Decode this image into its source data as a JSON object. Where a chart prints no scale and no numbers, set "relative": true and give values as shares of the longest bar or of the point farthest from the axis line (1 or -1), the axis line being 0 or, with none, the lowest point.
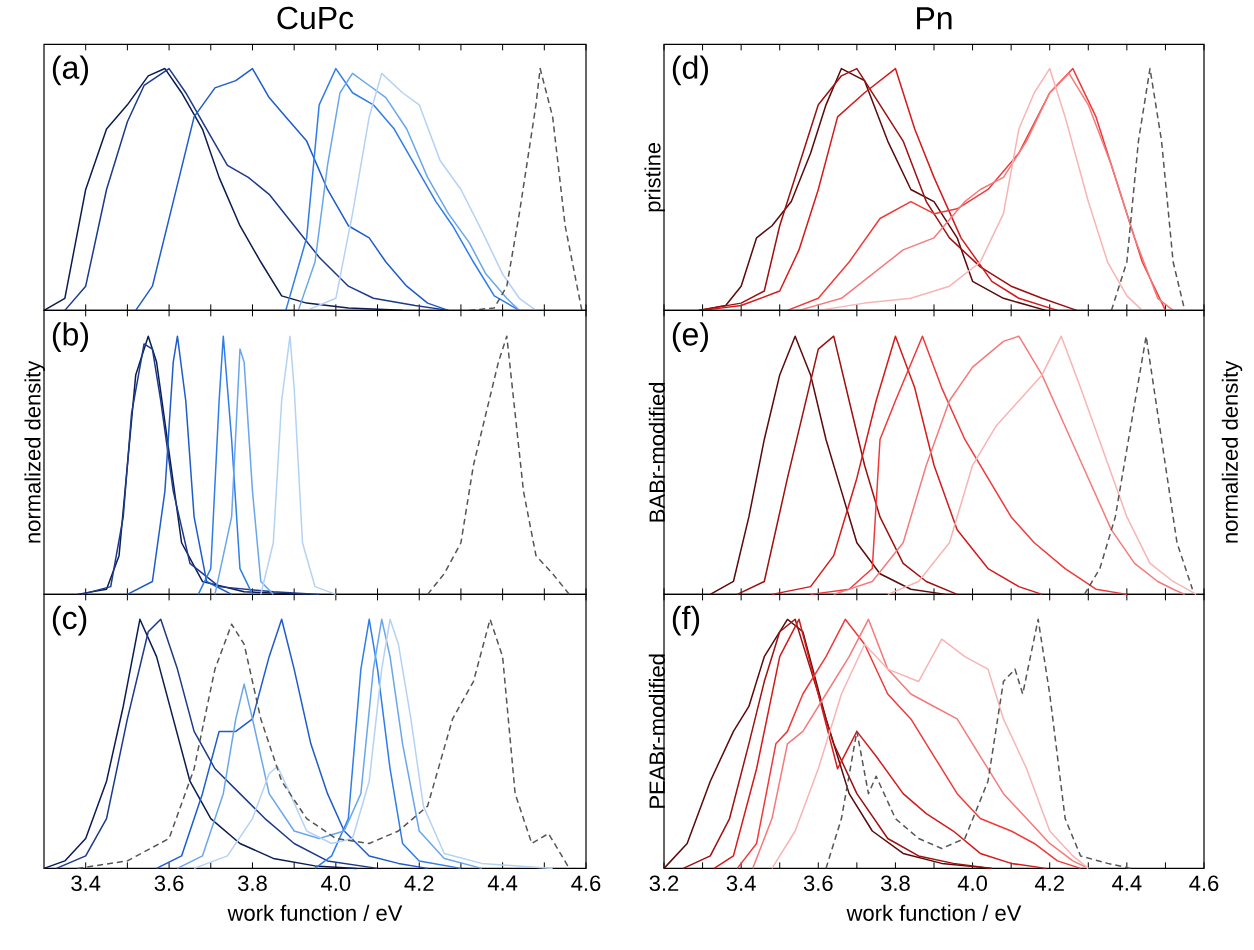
{
  "chart_data": [
    {
      "type": "line",
      "relative": true,
      "title": "CuPc",
      "annotations": [
        "(a)"
      ],
      "xlim": [
        3.3,
        4.6
      ],
      "tick_labels": false,
      "line_style": "solid",
      "xticks": [
        3.4,
        {
          "value": 3.5,
          "label": null
        },
        3.6,
        {
          "value": 3.7,
          "label": null
        },
        3.8,
        {
          "value": 3.9,
          "label": null
        },
        4.0,
        {
          "value": 4.1,
          "label": null
        },
        4.2,
        {
          "value": 4.3,
          "label": null
        },
        4.4,
        {
          "value": 4.5,
          "label": null
        },
        4.6
      ],
      "series": [
        {
          "color": "#0b1c50",
          "x": [
            3.3,
            3.35,
            3.4,
            3.45,
            3.5,
            3.55,
            3.59,
            3.63,
            3.68,
            3.72,
            3.77,
            3.82,
            3.87,
            3.93,
            4.03,
            4.16
          ],
          "values": [
            0,
            0.05,
            0.5,
            0.75,
            0.85,
            0.97,
            1.0,
            0.9,
            0.75,
            0.55,
            0.35,
            0.2,
            0.06,
            0.03,
            0.01,
            0
          ]
        },
        {
          "color": "#1c3a8c",
          "x": [
            3.35,
            3.4,
            3.45,
            3.5,
            3.54,
            3.6,
            3.64,
            3.69,
            3.74,
            3.79,
            3.84,
            3.9,
            3.96,
            4.03,
            4.09,
            4.19,
            4.27
          ],
          "values": [
            0,
            0.1,
            0.5,
            0.78,
            0.93,
            1.0,
            0.9,
            0.75,
            0.6,
            0.55,
            0.48,
            0.35,
            0.22,
            0.1,
            0.05,
            0.02,
            0
          ]
        },
        {
          "color": "#1e5ccc",
          "x": [
            3.52,
            3.56,
            3.61,
            3.66,
            3.71,
            3.76,
            3.8,
            3.84,
            3.88,
            3.93,
            3.98,
            4.03,
            4.08,
            4.12,
            4.17,
            4.22,
            4.27
          ],
          "values": [
            0,
            0.1,
            0.45,
            0.8,
            0.92,
            0.95,
            1.0,
            0.88,
            0.8,
            0.7,
            0.5,
            0.35,
            0.3,
            0.2,
            0.1,
            0.03,
            0
          ]
        },
        {
          "color": "#2f7de8",
          "x": [
            3.88,
            3.93,
            3.96,
            4.0,
            4.04,
            4.09,
            4.14,
            4.19,
            4.24,
            4.28,
            4.33,
            4.38,
            4.44
          ],
          "values": [
            0,
            0.3,
            0.85,
            1.0,
            0.9,
            0.85,
            0.75,
            0.6,
            0.45,
            0.35,
            0.2,
            0.06,
            0
          ]
        },
        {
          "color": "#6aa6ec",
          "x": [
            3.91,
            3.95,
            3.98,
            4.01,
            4.04,
            4.08,
            4.12,
            4.17,
            4.22,
            4.27,
            4.32,
            4.36,
            4.41,
            4.44
          ],
          "values": [
            0,
            0.2,
            0.6,
            0.9,
            0.98,
            0.93,
            0.88,
            0.75,
            0.55,
            0.4,
            0.28,
            0.15,
            0.05,
            0
          ]
        },
        {
          "color": "#b4d2f4",
          "x": [
            3.93,
            4.0,
            4.04,
            4.08,
            4.11,
            4.16,
            4.2,
            4.25,
            4.3,
            4.35,
            4.4,
            4.44,
            4.48
          ],
          "values": [
            0,
            0.05,
            0.4,
            0.8,
            0.98,
            0.9,
            0.85,
            0.62,
            0.5,
            0.33,
            0.15,
            0.05,
            0
          ]
        },
        {
          "color": "#555555",
          "line_style": "dashed",
          "x": [
            4.32,
            4.38,
            4.41,
            4.44,
            4.48,
            4.49,
            4.52,
            4.55,
            4.59
          ],
          "values": [
            0,
            0.01,
            0.1,
            0.4,
            0.85,
            1.0,
            0.8,
            0.35,
            0
          ]
        }
      ]
    },
    {
      "type": "line",
      "relative": true,
      "ylabel": "normalized density",
      "annotations": [
        "(b)"
      ],
      "xlim": [
        3.3,
        4.6
      ],
      "tick_labels": false,
      "line_style": "solid",
      "xticks": [
        3.4,
        {
          "value": 3.5,
          "label": null
        },
        3.6,
        {
          "value": 3.7,
          "label": null
        },
        3.8,
        {
          "value": 3.9,
          "label": null
        },
        4.0,
        {
          "value": 4.1,
          "label": null
        },
        4.2,
        {
          "value": 4.3,
          "label": null
        },
        4.4,
        {
          "value": 4.5,
          "label": null
        },
        4.6
      ],
      "series": [
        {
          "color": "#0b1c50",
          "x": [
            3.38,
            3.45,
            3.48,
            3.5,
            3.52,
            3.55,
            3.57,
            3.6,
            3.63,
            3.68,
            3.78,
            3.93
          ],
          "values": [
            0,
            0.02,
            0.15,
            0.5,
            0.85,
            1.0,
            0.9,
            0.55,
            0.2,
            0.05,
            0.01,
            0
          ]
        },
        {
          "color": "#1c3a8c",
          "x": [
            3.39,
            3.46,
            3.49,
            3.51,
            3.54,
            3.56,
            3.58,
            3.61,
            3.65,
            3.72,
            3.85,
            3.96
          ],
          "values": [
            0,
            0.03,
            0.3,
            0.7,
            0.97,
            0.95,
            0.75,
            0.4,
            0.12,
            0.03,
            0.01,
            0
          ]
        },
        {
          "color": "#1e5ccc",
          "x": [
            3.5,
            3.56,
            3.59,
            3.61,
            3.62,
            3.64,
            3.66,
            3.69,
            3.75
          ],
          "values": [
            0,
            0.05,
            0.4,
            0.9,
            1.0,
            0.75,
            0.3,
            0.05,
            0
          ]
        },
        {
          "color": "#2f7de8",
          "x": [
            3.67,
            3.7,
            3.72,
            3.73,
            3.75,
            3.77,
            3.8
          ],
          "values": [
            0,
            0.1,
            0.75,
            1.0,
            0.6,
            0.1,
            0
          ]
        },
        {
          "color": "#6aa6ec",
          "x": [
            3.71,
            3.75,
            3.77,
            3.78,
            3.8,
            3.82,
            3.85
          ],
          "values": [
            0,
            0.3,
            0.95,
            0.9,
            0.4,
            0.05,
            0
          ]
        },
        {
          "color": "#b4d2f4",
          "x": [
            3.82,
            3.85,
            3.87,
            3.89,
            3.9,
            3.92,
            3.95,
            4.0
          ],
          "values": [
            0,
            0.2,
            0.75,
            1.0,
            0.8,
            0.2,
            0.03,
            0
          ]
        },
        {
          "color": "#555555",
          "line_style": "dashed",
          "x": [
            4.22,
            4.26,
            4.3,
            4.33,
            4.36,
            4.39,
            4.41,
            4.43,
            4.45,
            4.48,
            4.52,
            4.56
          ],
          "values": [
            0,
            0.08,
            0.2,
            0.5,
            0.7,
            0.9,
            1.0,
            0.7,
            0.4,
            0.15,
            0.08,
            0
          ]
        }
      ]
    },
    {
      "type": "line",
      "relative": true,
      "xlabel": "work function / eV",
      "annotations": [
        "(c)"
      ],
      "xlim": [
        3.3,
        4.6
      ],
      "tick_labels": "x",
      "line_style": "solid",
      "xticks": [
        3.4,
        {
          "value": 3.5,
          "label": null
        },
        3.6,
        {
          "value": 3.7,
          "label": null
        },
        3.8,
        {
          "value": 3.9,
          "label": null
        },
        {
          "value": 4.0,
          "label": "4.0"
        },
        {
          "value": 4.1,
          "label": null
        },
        4.2,
        {
          "value": 4.3,
          "label": null
        },
        4.4,
        {
          "value": 4.5,
          "label": null
        },
        4.6
      ],
      "series": [
        {
          "color": "#0b1c50",
          "x": [
            3.3,
            3.35,
            3.4,
            3.45,
            3.49,
            3.53,
            3.57,
            3.61,
            3.65,
            3.7,
            3.77,
            3.85,
            3.95,
            4.05
          ],
          "values": [
            0,
            0.03,
            0.12,
            0.35,
            0.65,
            1.0,
            0.85,
            0.6,
            0.35,
            0.2,
            0.1,
            0.04,
            0.01,
            0
          ]
        },
        {
          "color": "#1c3a8c",
          "x": [
            3.33,
            3.4,
            3.45,
            3.5,
            3.55,
            3.58,
            3.62,
            3.66,
            3.71,
            3.77,
            3.83,
            3.9,
            3.98,
            4.1
          ],
          "values": [
            0,
            0.05,
            0.2,
            0.6,
            0.95,
            1.0,
            0.8,
            0.55,
            0.4,
            0.3,
            0.2,
            0.1,
            0.03,
            0
          ]
        },
        {
          "color": "#1e5ccc",
          "x": [
            3.57,
            3.63,
            3.68,
            3.72,
            3.76,
            3.8,
            3.84,
            3.87,
            3.9,
            3.94,
            3.98,
            4.02,
            4.08,
            4.15,
            4.22
          ],
          "values": [
            0,
            0.05,
            0.3,
            0.55,
            0.55,
            0.6,
            0.85,
            1.0,
            0.8,
            0.5,
            0.3,
            0.15,
            0.05,
            0.02,
            0
          ]
        },
        {
          "color": "#2f7de8",
          "x": [
            3.95,
            3.99,
            4.03,
            4.06,
            4.08,
            4.1,
            4.13,
            4.16,
            4.2,
            4.3
          ],
          "values": [
            0,
            0.05,
            0.2,
            0.8,
            1.0,
            0.8,
            0.4,
            0.1,
            0.03,
            0
          ]
        },
        {
          "color": "#6aa6ec",
          "x": [
            3.62,
            3.68,
            3.73,
            3.76,
            3.78,
            3.8,
            3.84,
            3.9,
            3.96,
            4.02,
            4.06,
            4.09,
            4.11,
            4.13,
            4.16,
            4.2,
            4.26,
            4.35
          ],
          "values": [
            0,
            0.05,
            0.3,
            0.6,
            0.74,
            0.6,
            0.3,
            0.15,
            0.12,
            0.15,
            0.3,
            0.8,
            1.0,
            0.85,
            0.5,
            0.15,
            0.04,
            0
          ]
        },
        {
          "color": "#b4d2f4",
          "x": [
            3.66,
            3.74,
            3.8,
            3.84,
            3.86,
            3.89,
            3.93,
            3.99,
            4.04,
            4.08,
            4.11,
            4.13,
            4.15,
            4.18,
            4.21,
            4.26,
            4.35,
            4.52
          ],
          "values": [
            0,
            0.05,
            0.2,
            0.38,
            0.41,
            0.3,
            0.15,
            0.1,
            0.12,
            0.35,
            0.8,
            1.0,
            0.9,
            0.6,
            0.25,
            0.06,
            0.02,
            0
          ]
        },
        {
          "color": "#555555",
          "line_style": "dashed",
          "x": [
            3.38,
            3.5,
            3.6,
            3.66,
            3.71,
            3.75,
            3.78,
            3.82,
            3.87,
            3.93,
            4.0,
            4.08,
            4.15,
            4.22,
            4.28,
            4.33,
            4.37,
            4.4,
            4.43,
            4.47,
            4.51,
            4.56
          ],
          "values": [
            0,
            0.03,
            0.12,
            0.4,
            0.8,
            0.98,
            0.9,
            0.6,
            0.35,
            0.2,
            0.12,
            0.1,
            0.15,
            0.25,
            0.6,
            0.75,
            1.0,
            0.85,
            0.3,
            0.1,
            0.14,
            0
          ]
        }
      ]
    },
    {
      "type": "line",
      "relative": true,
      "title": "Pn",
      "ylabel": "pristine",
      "annotations": [
        "(d)"
      ],
      "xlim": [
        3.2,
        4.6
      ],
      "tick_labels": false,
      "line_style": "solid",
      "xticks": [
        3.2,
        {
          "value": 3.3,
          "label": null
        },
        3.4,
        {
          "value": 3.5,
          "label": null
        },
        3.6,
        {
          "value": 3.7,
          "label": null
        },
        3.8,
        {
          "value": 3.9,
          "label": null
        },
        4.0,
        {
          "value": 4.1,
          "label": null
        },
        4.2,
        {
          "value": 4.3,
          "label": null
        },
        4.4,
        {
          "value": 4.5,
          "label": null
        },
        4.6
      ],
      "series": [
        {
          "color": "#5a0a0a",
          "x": [
            3.29,
            3.36,
            3.4,
            3.44,
            3.48,
            3.53,
            3.58,
            3.62,
            3.66,
            3.72,
            3.78,
            3.84,
            3.9,
            3.96,
            4.0,
            4.08,
            4.19
          ],
          "values": [
            0,
            0.02,
            0.1,
            0.3,
            0.35,
            0.45,
            0.65,
            0.85,
            1.0,
            0.95,
            0.7,
            0.5,
            0.45,
            0.3,
            0.12,
            0.05,
            0
          ]
        },
        {
          "color": "#9e1010",
          "x": [
            3.29,
            3.4,
            3.46,
            3.5,
            3.55,
            3.6,
            3.66,
            3.7,
            3.76,
            3.82,
            3.88,
            3.94,
            4.02,
            4.1,
            4.18,
            4.27
          ],
          "values": [
            0,
            0.03,
            0.08,
            0.35,
            0.6,
            0.85,
            0.97,
            1.0,
            0.85,
            0.7,
            0.45,
            0.3,
            0.18,
            0.1,
            0.05,
            0
          ]
        },
        {
          "color": "#d41a1a",
          "x": [
            3.3,
            3.4,
            3.5,
            3.55,
            3.6,
            3.65,
            3.72,
            3.8,
            3.85,
            3.9,
            3.97,
            4.05,
            4.12,
            4.22
          ],
          "values": [
            0,
            0.02,
            0.08,
            0.25,
            0.5,
            0.8,
            0.9,
            1.0,
            0.75,
            0.55,
            0.3,
            0.12,
            0.05,
            0
          ]
        },
        {
          "color": "#f03a3a",
          "x": [
            3.52,
            3.6,
            3.68,
            3.76,
            3.84,
            3.9,
            3.96,
            4.04,
            4.12,
            4.2,
            4.26,
            4.32,
            4.38,
            4.44,
            4.5
          ],
          "values": [
            0,
            0.05,
            0.2,
            0.38,
            0.45,
            0.4,
            0.42,
            0.5,
            0.65,
            0.9,
            1.0,
            0.8,
            0.5,
            0.2,
            0
          ]
        },
        {
          "color": "#f57a7a",
          "x": [
            3.55,
            3.66,
            3.74,
            3.82,
            3.9,
            3.98,
            4.02,
            4.08,
            4.14,
            4.2,
            4.25,
            4.3,
            4.36,
            4.42,
            4.48,
            4.52
          ],
          "values": [
            0,
            0.05,
            0.15,
            0.25,
            0.3,
            0.45,
            0.5,
            0.55,
            0.7,
            0.9,
            0.98,
            0.85,
            0.6,
            0.3,
            0.05,
            0
          ]
        },
        {
          "color": "#f8b4b4",
          "x": [
            3.6,
            3.72,
            3.84,
            3.94,
            4.02,
            4.08,
            4.12,
            4.16,
            4.2,
            4.24,
            4.3,
            4.35,
            4.4,
            4.44
          ],
          "values": [
            0,
            0.03,
            0.05,
            0.1,
            0.2,
            0.4,
            0.75,
            0.9,
            1.0,
            0.8,
            0.45,
            0.2,
            0.06,
            0
          ]
        },
        {
          "color": "#555555",
          "line_style": "dashed",
          "x": [
            4.36,
            4.4,
            4.43,
            4.46,
            4.49,
            4.52,
            4.55
          ],
          "values": [
            0,
            0.2,
            0.7,
            1.0,
            0.7,
            0.2,
            0
          ]
        }
      ]
    },
    {
      "type": "line",
      "relative": true,
      "ylabel": "BABr-modified",
      "y2label": "normalized density",
      "annotations": [
        "(e)"
      ],
      "xlim": [
        3.2,
        4.6
      ],
      "tick_labels": false,
      "line_style": "solid",
      "xticks": [
        3.2,
        {
          "value": 3.3,
          "label": null
        },
        3.4,
        {
          "value": 3.5,
          "label": null
        },
        3.6,
        {
          "value": 3.7,
          "label": null
        },
        3.8,
        {
          "value": 3.9,
          "label": null
        },
        4.0,
        {
          "value": 4.1,
          "label": null
        },
        4.2,
        {
          "value": 4.3,
          "label": null
        },
        4.4,
        {
          "value": 4.5,
          "label": null
        },
        4.6
      ],
      "series": [
        {
          "color": "#5a0a0a",
          "x": [
            3.32,
            3.38,
            3.42,
            3.46,
            3.5,
            3.54,
            3.58,
            3.62,
            3.66,
            3.7,
            3.76,
            3.84,
            3.93
          ],
          "values": [
            0,
            0.05,
            0.3,
            0.6,
            0.85,
            1.0,
            0.85,
            0.6,
            0.4,
            0.2,
            0.08,
            0.02,
            0
          ]
        },
        {
          "color": "#9e1010",
          "x": [
            3.39,
            3.46,
            3.52,
            3.56,
            3.6,
            3.64,
            3.68,
            3.72,
            3.76,
            3.82,
            3.88,
            3.96
          ],
          "values": [
            0,
            0.05,
            0.45,
            0.7,
            0.95,
            1.0,
            0.75,
            0.5,
            0.3,
            0.12,
            0.05,
            0
          ]
        },
        {
          "color": "#d41a1a",
          "x": [
            3.48,
            3.58,
            3.64,
            3.7,
            3.75,
            3.8,
            3.85,
            3.9,
            3.96,
            4.04,
            4.12,
            4.18
          ],
          "values": [
            0,
            0.03,
            0.15,
            0.45,
            0.75,
            1.0,
            0.8,
            0.5,
            0.25,
            0.1,
            0.03,
            0
          ]
        },
        {
          "color": "#f03a3a",
          "x": [
            3.58,
            3.68,
            3.74,
            3.76,
            3.8,
            3.87,
            3.92,
            3.98,
            4.04,
            4.1,
            4.16,
            4.24,
            4.32,
            4.4
          ],
          "values": [
            0,
            0.02,
            0.1,
            0.6,
            0.75,
            1.0,
            0.8,
            0.6,
            0.45,
            0.3,
            0.2,
            0.1,
            0.02,
            0
          ]
        },
        {
          "color": "#f57a7a",
          "x": [
            3.64,
            3.74,
            3.82,
            3.88,
            3.94,
            4.0,
            4.08,
            4.12,
            4.18,
            4.24,
            4.3,
            4.36,
            4.42,
            4.48,
            4.52,
            4.55
          ],
          "values": [
            0,
            0.05,
            0.2,
            0.5,
            0.75,
            0.88,
            0.98,
            1.0,
            0.85,
            0.65,
            0.45,
            0.25,
            0.12,
            0.05,
            0.02,
            0
          ]
        },
        {
          "color": "#f8b4b4",
          "x": [
            3.78,
            3.86,
            3.94,
            4.0,
            4.06,
            4.12,
            4.18,
            4.23,
            4.28,
            4.34,
            4.4,
            4.46,
            4.52,
            4.58
          ],
          "values": [
            0,
            0.05,
            0.2,
            0.5,
            0.65,
            0.75,
            0.85,
            1.0,
            0.8,
            0.55,
            0.3,
            0.12,
            0.05,
            0
          ]
        },
        {
          "color": "#555555",
          "line_style": "dashed",
          "x": [
            4.29,
            4.33,
            4.37,
            4.41,
            4.45,
            4.49,
            4.53,
            4.57
          ],
          "values": [
            0,
            0.1,
            0.3,
            0.65,
            1.0,
            0.6,
            0.2,
            0.02
          ]
        }
      ]
    },
    {
      "type": "line",
      "relative": true,
      "ylabel": "PEABr-modified",
      "xlabel": "work function / eV",
      "annotations": [
        "(f)"
      ],
      "xlim": [
        3.2,
        4.6
      ],
      "tick_labels": "x",
      "line_style": "solid",
      "xticks": [
        3.2,
        {
          "value": 3.3,
          "label": null
        },
        3.4,
        {
          "value": 3.5,
          "label": null
        },
        3.6,
        {
          "value": 3.7,
          "label": null
        },
        3.8,
        {
          "value": 3.9,
          "label": null
        },
        {
          "value": 4.0,
          "label": "4.0"
        },
        {
          "value": 4.1,
          "label": null
        },
        4.2,
        {
          "value": 4.3,
          "label": null
        },
        4.4,
        {
          "value": 4.5,
          "label": null
        },
        4.6
      ],
      "series": [
        {
          "color": "#5a0a0a",
          "x": [
            3.2,
            3.26,
            3.32,
            3.38,
            3.42,
            3.46,
            3.52,
            3.56,
            3.62,
            3.68,
            3.74,
            3.82,
            3.92,
            4.05
          ],
          "values": [
            0,
            0.1,
            0.35,
            0.55,
            0.65,
            0.85,
            1.0,
            0.95,
            0.6,
            0.3,
            0.15,
            0.06,
            0.02,
            0
          ]
        },
        {
          "color": "#9e1010",
          "x": [
            3.25,
            3.32,
            3.37,
            3.42,
            3.46,
            3.5,
            3.54,
            3.58,
            3.64,
            3.7,
            3.78,
            3.86,
            3.95,
            4.05
          ],
          "values": [
            0,
            0.05,
            0.2,
            0.5,
            0.75,
            0.95,
            1.0,
            0.8,
            0.5,
            0.3,
            0.12,
            0.05,
            0.02,
            0
          ]
        },
        {
          "color": "#d41a1a",
          "x": [
            3.33,
            3.38,
            3.44,
            3.5,
            3.55,
            3.6,
            3.65,
            3.7,
            3.75,
            3.82,
            3.88,
            3.95,
            4.02,
            4.1,
            4.19
          ],
          "values": [
            0,
            0.05,
            0.4,
            0.85,
            1.0,
            0.7,
            0.4,
            0.55,
            0.45,
            0.3,
            0.22,
            0.15,
            0.06,
            0.02,
            0
          ]
        },
        {
          "color": "#f03a3a",
          "x": [
            3.39,
            3.44,
            3.49,
            3.52,
            3.56,
            3.62,
            3.67,
            3.72,
            3.78,
            3.84,
            3.9,
            3.96,
            4.02,
            4.1,
            4.16,
            4.22,
            4.28
          ],
          "values": [
            0,
            0.1,
            0.5,
            0.55,
            0.7,
            0.85,
            1.0,
            0.9,
            0.7,
            0.6,
            0.45,
            0.3,
            0.2,
            0.15,
            0.1,
            0.03,
            0
          ]
        },
        {
          "color": "#f57a7a",
          "x": [
            3.43,
            3.48,
            3.52,
            3.56,
            3.62,
            3.68,
            3.73,
            3.78,
            3.84,
            3.9,
            3.96,
            4.02,
            4.08,
            4.14,
            4.2,
            4.26,
            4.3
          ],
          "values": [
            0,
            0.2,
            0.5,
            0.55,
            0.7,
            0.85,
            1.0,
            0.8,
            0.7,
            0.65,
            0.6,
            0.45,
            0.3,
            0.2,
            0.1,
            0.03,
            0
          ]
        },
        {
          "color": "#f8b4b4",
          "x": [
            3.48,
            3.54,
            3.6,
            3.66,
            3.72,
            3.78,
            3.86,
            3.92,
            3.98,
            4.04,
            4.08,
            4.14,
            4.2,
            4.26,
            4.3
          ],
          "values": [
            0,
            0.15,
            0.4,
            0.7,
            0.9,
            0.8,
            0.75,
            0.92,
            0.85,
            0.8,
            0.6,
            0.4,
            0.15,
            0.05,
            0
          ]
        },
        {
          "color": "#555555",
          "line_style": "dashed",
          "x": [
            3.62,
            3.66,
            3.7,
            3.73,
            3.75,
            3.8,
            3.86,
            3.92,
            3.98,
            4.04,
            4.08,
            4.11,
            4.13,
            4.15,
            4.17,
            4.2,
            4.24,
            4.28,
            4.35,
            4.41
          ],
          "values": [
            0,
            0.2,
            0.55,
            0.3,
            0.37,
            0.2,
            0.12,
            0.08,
            0.12,
            0.35,
            0.75,
            0.8,
            0.7,
            0.85,
            1.0,
            0.7,
            0.2,
            0.05,
            0.02,
            0
          ]
        }
      ]
    }
  ]
}
